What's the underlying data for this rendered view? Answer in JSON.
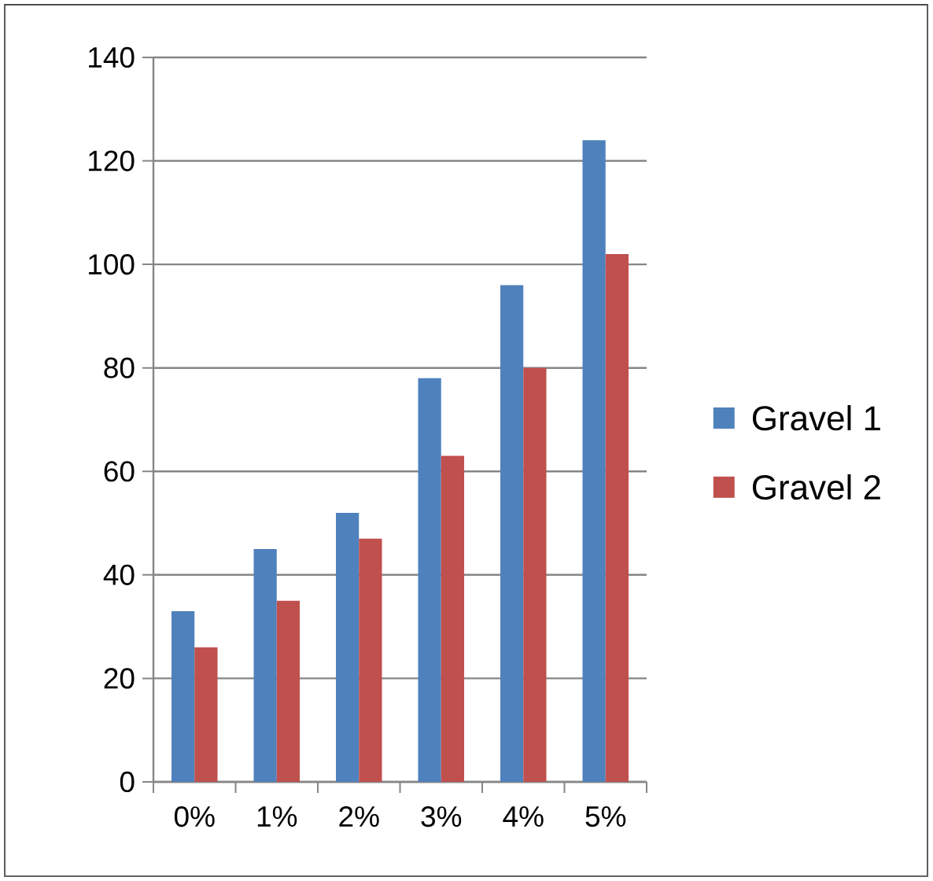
{
  "chart_data": {
    "type": "bar",
    "categories": [
      "0%",
      "1%",
      "2%",
      "3%",
      "4%",
      "5%"
    ],
    "series": [
      {
        "name": "Gravel 1",
        "color": "#4f81bd",
        "values": [
          33,
          45,
          52,
          78,
          96,
          124
        ]
      },
      {
        "name": "Gravel 2",
        "color": "#c0504d",
        "values": [
          26,
          35,
          47,
          63,
          80,
          102
        ]
      }
    ],
    "ylim": [
      0,
      140
    ],
    "yticks": [
      0,
      20,
      40,
      60,
      80,
      100,
      120,
      140
    ],
    "grid": "y",
    "legend": "right"
  }
}
